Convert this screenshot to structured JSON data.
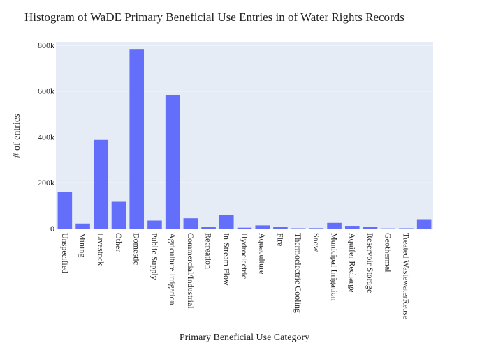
{
  "chart_data": {
    "type": "bar",
    "title": "Histogram of WaDE Primary Beneficial Use Entries in of Water Rights Records",
    "xlabel": "Primary Beneficial Use Category",
    "ylabel": "# of entries",
    "ylim": [
      0,
      815000
    ],
    "yticks": [
      0,
      200000,
      400000,
      600000,
      800000
    ],
    "ytick_labels": [
      "0",
      "200k",
      "400k",
      "600k",
      "800k"
    ],
    "grid": true,
    "legend": "none",
    "colors": {
      "bar": "#636efa",
      "plot_bg": "#e5ecf6",
      "grid": "#ffffff"
    },
    "categories": [
      "Unspecified",
      "Mining",
      "Livestock",
      "Other",
      "Domestic",
      "Public Supply",
      "Agriculture Irrigation",
      "Commercial/Industrial",
      "Recreation",
      "In-Stream Flow",
      "Hydroelectric",
      "Aquaculture",
      "Fire",
      "Thermoelectric Cooling",
      "Snow",
      "Municipal Irrigation",
      "Aquifer Recharge",
      "Reservoir Storage",
      "Geothermal",
      "Treated WastewaterReuse",
      ""
    ],
    "values": [
      160000,
      22000,
      387000,
      117000,
      781000,
      35000,
      582000,
      45000,
      9000,
      59000,
      4000,
      14000,
      7000,
      1500,
      2000,
      25000,
      12000,
      9000,
      1000,
      1500,
      41000
    ]
  }
}
